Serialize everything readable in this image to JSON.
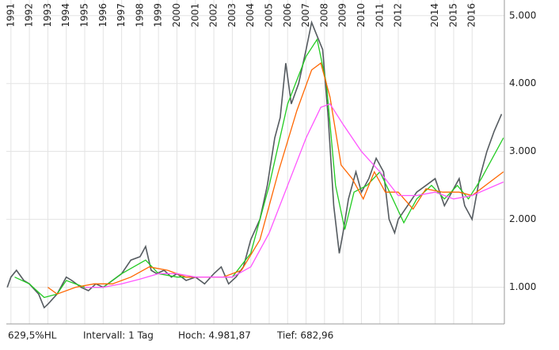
{
  "chart_data": {
    "type": "line",
    "xlim": [
      1990.75,
      2017.75
    ],
    "xticks": [
      1991,
      1992,
      1993,
      1994,
      1995,
      1996,
      1997,
      1998,
      1999,
      2000,
      2001,
      2002,
      2003,
      2004,
      2005,
      2006,
      2007,
      2008,
      2009,
      2010,
      2011,
      2012,
      2014,
      2015,
      2016
    ],
    "ylim": [
      460,
      5230
    ],
    "yticks": [
      {
        "value": 1000,
        "label": "1.000"
      },
      {
        "value": 2000,
        "label": "2.000"
      },
      {
        "value": 3000,
        "label": "3.000"
      },
      {
        "value": 4000,
        "label": "4.000"
      },
      {
        "value": 5000,
        "label": "5.000"
      }
    ],
    "grid": true,
    "footer": [
      "629,5%HL",
      "Intervall: 1 Tag",
      "Hoch: 4.981,87",
      "Tief: 682,96"
    ],
    "series": [
      {
        "color": "#555b60",
        "x": [
          1990.8,
          1991.0,
          1991.3,
          1991.7,
          1992.0,
          1992.5,
          1992.8,
          1993.0,
          1993.5,
          1994.0,
          1994.3,
          1994.8,
          1995.2,
          1995.6,
          1996.0,
          1996.5,
          1997.0,
          1997.5,
          1998.0,
          1998.3,
          1998.6,
          1998.9,
          1999.3,
          1999.7,
          2000.0,
          2000.5,
          2001.0,
          2001.5,
          2002.0,
          2002.4,
          2002.8,
          2003.2,
          2003.6,
          2004.0,
          2004.5,
          2004.9,
          2005.3,
          2005.6,
          2005.9,
          2006.2,
          2006.6,
          2007.0,
          2007.3,
          2007.6,
          2007.9,
          2008.2,
          2008.5,
          2008.8,
          2009.0,
          2009.3,
          2009.7,
          2010.0,
          2010.4,
          2010.8,
          2011.2,
          2011.5,
          2011.8,
          2012.0,
          2012.5,
          2013.0,
          2013.5,
          2014.0,
          2014.5,
          2014.9,
          2015.3,
          2015.6,
          2016.0,
          2016.4,
          2016.8,
          2017.2,
          2017.6
        ],
        "values": [
          1000,
          1150,
          1250,
          1100,
          1050,
          900,
          700,
          750,
          900,
          1150,
          1100,
          1000,
          950,
          1050,
          1000,
          1100,
          1200,
          1400,
          1450,
          1600,
          1250,
          1200,
          1250,
          1150,
          1200,
          1100,
          1150,
          1050,
          1200,
          1300,
          1050,
          1150,
          1300,
          1700,
          2000,
          2500,
          3200,
          3500,
          4300,
          3700,
          4000,
          4500,
          4900,
          4700,
          4500,
          3500,
          2200,
          1500,
          1800,
          2300,
          2700,
          2400,
          2600,
          2900,
          2700,
          2000,
          1800,
          2000,
          2200,
          2400,
          2500,
          2600,
          2200,
          2400,
          2600,
          2200,
          2000,
          2600,
          3000,
          3300,
          3550
        ]
      },
      {
        "color": "#22cc22",
        "x": [
          1991.2,
          1992.0,
          1992.8,
          1993.5,
          1994.0,
          1995.0,
          1996.0,
          1997.0,
          1998.3,
          1999.0,
          2000.0,
          2001.0,
          2002.0,
          2003.0,
          2004.0,
          2005.0,
          2006.0,
          2007.0,
          2007.6,
          2008.1,
          2008.6,
          2009.1,
          2009.6,
          2010.3,
          2011.0,
          2011.7,
          2012.3,
          2013.0,
          2013.8,
          2014.5,
          2015.2,
          2015.8,
          2016.5,
          2017.7
        ],
        "values": [
          1150,
          1050,
          850,
          900,
          1100,
          1000,
          1000,
          1200,
          1400,
          1200,
          1150,
          1150,
          1150,
          1150,
          1500,
          2500,
          3700,
          4400,
          4650,
          4000,
          2500,
          1850,
          2400,
          2500,
          2700,
          2300,
          1950,
          2300,
          2500,
          2300,
          2500,
          2300,
          2600,
          3200
        ]
      },
      {
        "color": "#ff6600",
        "x": [
          1993.0,
          1993.5,
          1994.5,
          1995.5,
          1996.5,
          1997.5,
          1998.5,
          1999.5,
          2000.5,
          2001.5,
          2002.5,
          2003.5,
          2004.5,
          2005.5,
          2006.5,
          2007.3,
          2007.8,
          2008.3,
          2008.9,
          2009.5,
          2010.1,
          2010.7,
          2011.3,
          2012.0,
          2012.8,
          2013.5,
          2014.4,
          2015.3,
          2016.0,
          2017.7
        ],
        "values": [
          1000,
          900,
          1000,
          1050,
          1050,
          1150,
          1300,
          1250,
          1150,
          1150,
          1150,
          1250,
          1700,
          2700,
          3600,
          4200,
          4300,
          3800,
          2800,
          2600,
          2300,
          2700,
          2400,
          2400,
          2150,
          2450,
          2400,
          2400,
          2350,
          2700
        ]
      },
      {
        "color": "#ff55ff",
        "x": [
          1995.0,
          1996.0,
          1997.0,
          1998.0,
          1999.0,
          2000.0,
          2001.0,
          2002.0,
          2003.0,
          2004.0,
          2005.0,
          2006.0,
          2007.0,
          2007.8,
          2008.3,
          2009.0,
          2010.0,
          2011.0,
          2012.0,
          2013.0,
          2014.0,
          2015.0,
          2016.0,
          2017.7
        ],
        "values": [
          1000,
          1000,
          1050,
          1120,
          1200,
          1200,
          1150,
          1150,
          1150,
          1300,
          1800,
          2500,
          3200,
          3650,
          3700,
          3400,
          3000,
          2700,
          2350,
          2350,
          2400,
          2300,
          2350,
          2550
        ]
      }
    ]
  }
}
